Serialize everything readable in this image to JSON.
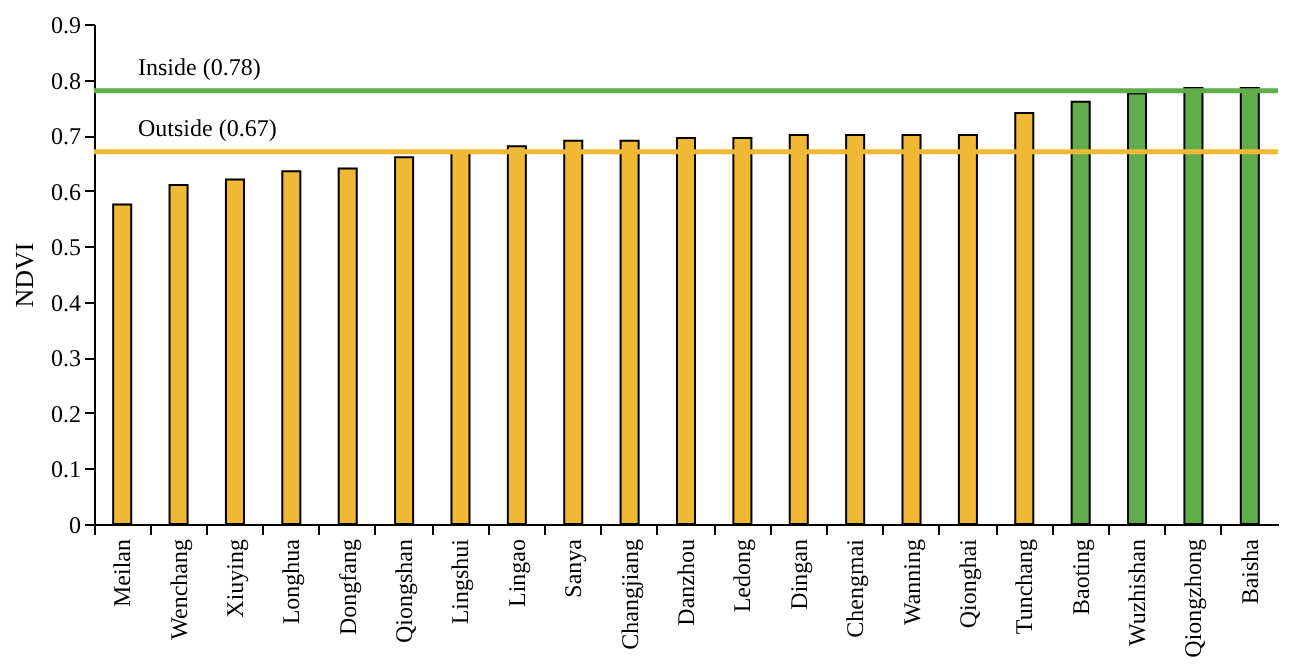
{
  "chart_data": {
    "type": "bar",
    "ylabel": "NDVI",
    "categories": [
      "Meilan",
      "Wenchang",
      "Xiuying",
      "Longhua",
      "Dongfang",
      "Qiongshan",
      "Lingshui",
      "Lingao",
      "Sanya",
      "Changjiang",
      "Danzhou",
      "Ledong",
      "Dingan",
      "Chengmai",
      "Wanning",
      "Qionghai",
      "Tunchang",
      "Baoting",
      "Wuzhishan",
      "Qiongzhong",
      "Baisha"
    ],
    "values": [
      0.575,
      0.61,
      0.62,
      0.635,
      0.64,
      0.66,
      0.67,
      0.68,
      0.69,
      0.69,
      0.695,
      0.695,
      0.7,
      0.7,
      0.7,
      0.7,
      0.74,
      0.76,
      0.775,
      0.785,
      0.785
    ],
    "colors": [
      "#f0b935",
      "#f0b935",
      "#f0b935",
      "#f0b935",
      "#f0b935",
      "#f0b935",
      "#f0b935",
      "#f0b935",
      "#f0b935",
      "#f0b935",
      "#f0b935",
      "#f0b935",
      "#f0b935",
      "#f0b935",
      "#f0b935",
      "#f0b935",
      "#f0b935",
      "#62ad4b",
      "#62ad4b",
      "#62ad4b",
      "#62ad4b"
    ],
    "ylim": [
      0,
      0.9
    ],
    "yticks": [
      0,
      0.1,
      0.2,
      0.3,
      0.4,
      0.5,
      0.6,
      0.7,
      0.8,
      0.9
    ],
    "ref_lines": [
      {
        "axis": "y",
        "value": 0.78,
        "label": "Inside (0.78)",
        "color": "#62ad4b"
      },
      {
        "axis": "y",
        "value": 0.67,
        "label": "Outside (0.67)",
        "color": "#f0b935"
      }
    ],
    "grid": false
  }
}
